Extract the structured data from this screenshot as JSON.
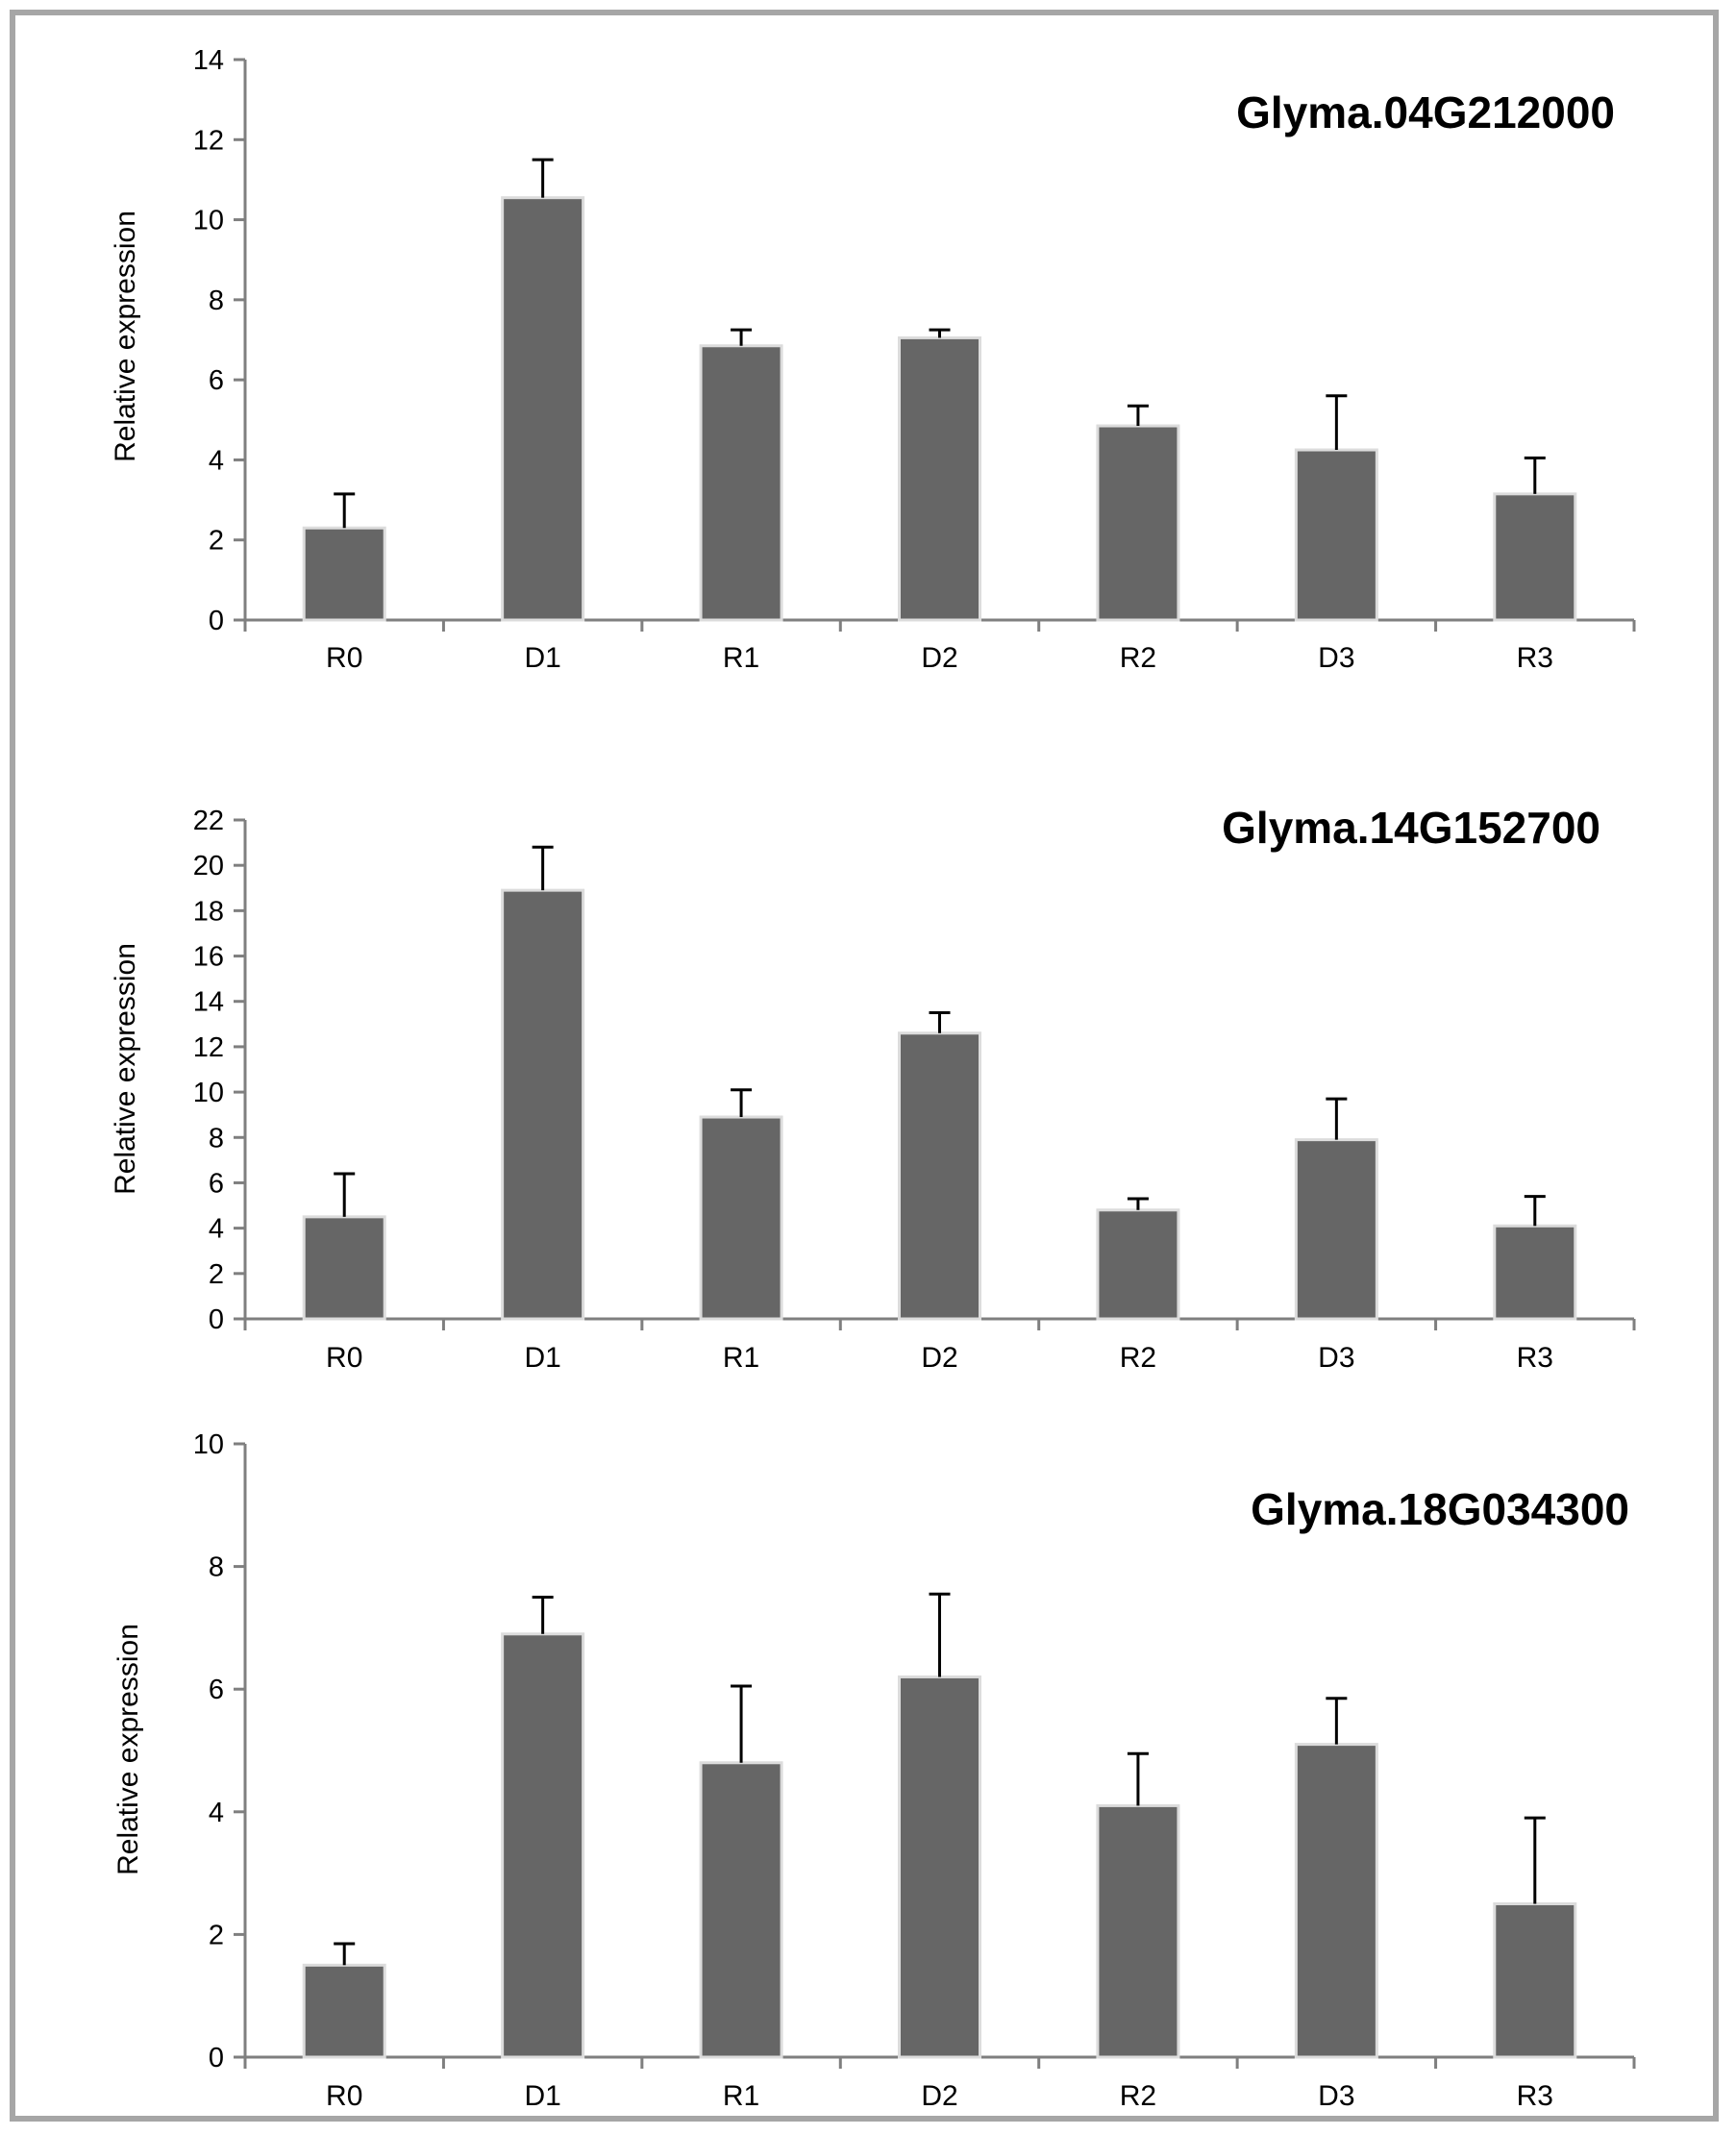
{
  "chart_data": [
    {
      "type": "bar",
      "title": "Glyma.04G212000",
      "ylabel": "Relative expression",
      "xlabel": "",
      "categories": [
        "R0",
        "D1",
        "R1",
        "D2",
        "R2",
        "D3",
        "R3"
      ],
      "values": [
        2.3,
        10.55,
        6.85,
        7.05,
        4.85,
        4.25,
        3.15
      ],
      "errors": [
        0.85,
        0.95,
        0.4,
        0.2,
        0.5,
        1.35,
        0.9
      ],
      "ylim": [
        0,
        14
      ],
      "yticks": [
        0,
        2,
        4,
        6,
        8,
        10,
        12,
        14
      ],
      "grid": false,
      "bar_color": "#666666"
    },
    {
      "type": "bar",
      "title": "Glyma.14G152700",
      "ylabel": "Relative expression",
      "xlabel": "",
      "categories": [
        "R0",
        "D1",
        "R1",
        "D2",
        "R2",
        "D3",
        "R3"
      ],
      "values": [
        4.5,
        18.9,
        8.9,
        12.6,
        4.8,
        7.9,
        4.1
      ],
      "errors": [
        1.9,
        1.9,
        1.2,
        0.9,
        0.5,
        1.8,
        1.3
      ],
      "ylim": [
        0,
        22
      ],
      "yticks": [
        0,
        2,
        4,
        6,
        8,
        10,
        12,
        14,
        16,
        18,
        20,
        22
      ],
      "grid": false,
      "bar_color": "#666666"
    },
    {
      "type": "bar",
      "title": "Glyma.18G034300",
      "ylabel": "Relative expression",
      "xlabel": "",
      "categories": [
        "R0",
        "D1",
        "R1",
        "D2",
        "R2",
        "D3",
        "R3"
      ],
      "values": [
        1.5,
        6.9,
        4.8,
        6.2,
        4.1,
        5.1,
        2.5
      ],
      "errors": [
        0.35,
        0.6,
        1.25,
        1.35,
        0.85,
        0.75,
        1.4
      ],
      "ylim": [
        0,
        10
      ],
      "yticks": [
        0,
        2,
        4,
        6,
        8,
        10
      ],
      "grid": false,
      "bar_color": "#666666"
    }
  ]
}
